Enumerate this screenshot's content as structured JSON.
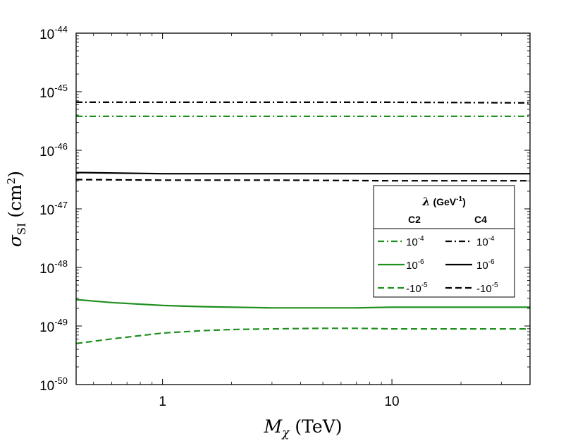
{
  "chart_data": {
    "type": "line",
    "xscale": "log",
    "yscale": "log",
    "xlim": [
      0.42,
      40
    ],
    "ylim": [
      1e-50,
      1e-44
    ],
    "xlabel": {
      "main": "M",
      "sub": "χ",
      "unit": "(TeV)"
    },
    "ylabel": {
      "main": "σ",
      "sub": "SI",
      "unit_pre": "(cm",
      "unit_sup": "2",
      "unit_post": ")"
    },
    "xticks": [
      {
        "value": 1,
        "label": "1"
      },
      {
        "value": 10,
        "label": "10"
      }
    ],
    "yticks": [
      {
        "value": -50,
        "base": "10",
        "exp": "-50"
      },
      {
        "value": -49,
        "base": "10",
        "exp": "-49"
      },
      {
        "value": -48,
        "base": "10",
        "exp": "-48"
      },
      {
        "value": -47,
        "base": "10",
        "exp": "-47"
      },
      {
        "value": -46,
        "base": "10",
        "exp": "-46"
      },
      {
        "value": -45,
        "base": "10",
        "exp": "-45"
      },
      {
        "value": -44,
        "base": "10",
        "exp": "-44"
      }
    ],
    "series": [
      {
        "name": "C4 λ=1e-4",
        "group": "C4",
        "color": "#000000",
        "dash": "dashdot",
        "x": [
          0.42,
          1,
          3,
          10,
          40
        ],
        "log10y": [
          -45.18,
          -45.18,
          -45.18,
          -45.18,
          -45.19
        ]
      },
      {
        "name": "C2 λ=1e-4",
        "group": "C2",
        "color": "#1f8f1f",
        "dash": "dashdot",
        "x": [
          0.42,
          1,
          3,
          10,
          40
        ],
        "log10y": [
          -45.42,
          -45.42,
          -45.42,
          -45.42,
          -45.42
        ]
      },
      {
        "name": "C4 λ=1e-6",
        "group": "C4",
        "color": "#000000",
        "dash": "solid",
        "x": [
          0.42,
          1,
          3,
          10,
          40
        ],
        "log10y": [
          -46.38,
          -46.4,
          -46.4,
          -46.4,
          -46.4
        ]
      },
      {
        "name": "C4 λ=-1e-5",
        "group": "C4",
        "color": "#000000",
        "dash": "dashed",
        "x": [
          0.42,
          1,
          3,
          10,
          40
        ],
        "log10y": [
          -46.5,
          -46.51,
          -46.51,
          -46.52,
          -46.52
        ]
      },
      {
        "name": "C2 λ=1e-6",
        "group": "C2",
        "color": "#1f8f1f",
        "dash": "solid",
        "x": [
          0.42,
          0.6,
          1,
          1.5,
          2,
          3,
          5,
          7,
          10,
          20,
          40
        ],
        "log10y": [
          -48.55,
          -48.6,
          -48.65,
          -48.67,
          -48.68,
          -48.69,
          -48.69,
          -48.69,
          -48.68,
          -48.68,
          -48.68
        ]
      },
      {
        "name": "C2 λ=-1e-5",
        "group": "C2",
        "color": "#1f8f1f",
        "dash": "dashed",
        "x": [
          0.42,
          0.6,
          1,
          1.5,
          2,
          3,
          5,
          7,
          10,
          20,
          40
        ],
        "log10y": [
          -49.3,
          -49.22,
          -49.12,
          -49.08,
          -49.06,
          -49.05,
          -49.04,
          -49.04,
          -49.05,
          -49.05,
          -49.05
        ]
      }
    ],
    "legend": {
      "placement": "right-middle",
      "title_symbol": "λ",
      "title_unit_pre": "(GeV",
      "title_unit_exp": "-1",
      "title_unit_post": ")",
      "column_headers": [
        "C2",
        "C4"
      ],
      "rows": [
        {
          "base": "10",
          "exp": "-4",
          "c2": "C2 λ=1e-4",
          "c4": "C4 λ=1e-4"
        },
        {
          "base": "10",
          "exp": "-6",
          "c2": "C2 λ=1e-6",
          "c4": "C4 λ=1e-6"
        },
        {
          "base": "-10",
          "exp": "-5",
          "c2": "C2 λ=-1e-5",
          "c4": "C4 λ=-1e-5"
        }
      ]
    }
  }
}
